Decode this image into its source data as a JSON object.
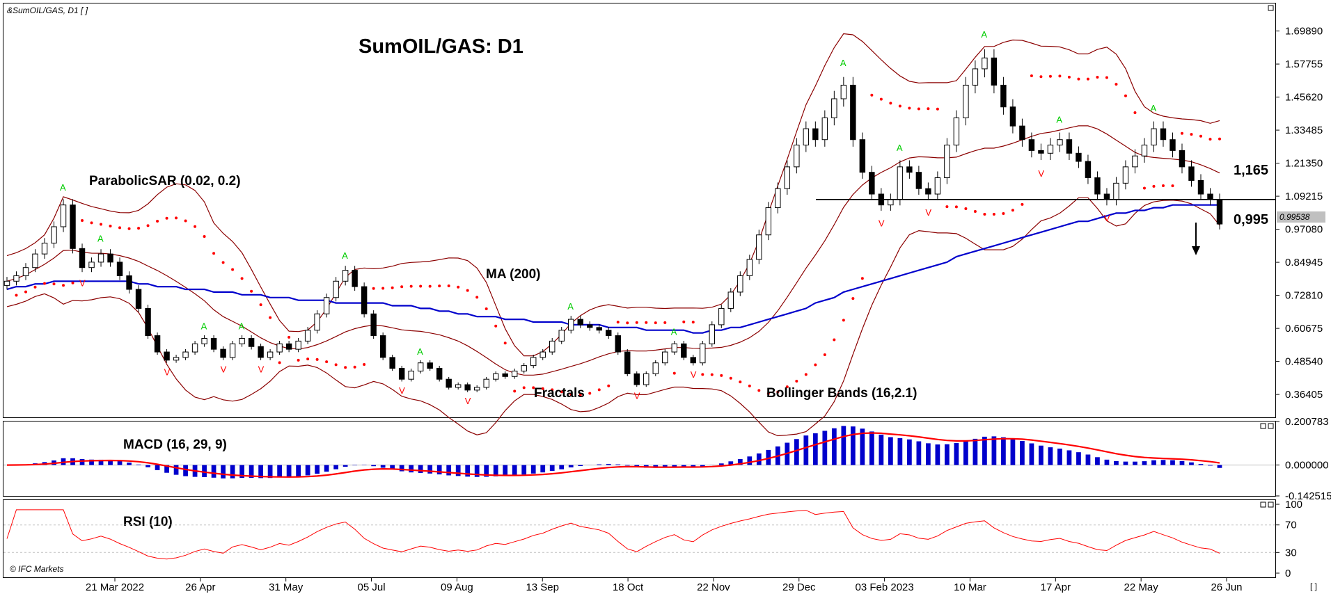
{
  "header": {
    "symbol_label": "&SumOIL/GAS, D1 [ ]",
    "chart_title": "SumOIL/GAS: D1",
    "watermark": "© IFC Markets",
    "corner_label": "[ ]"
  },
  "colors": {
    "bull_candle": "#ffffff",
    "bear_candle": "#000000",
    "ma": "#0000cc",
    "bollinger": "#8b0000",
    "sar": "#ff0000",
    "fractal_up": "#00cc00",
    "fractal_down": "#ff0000",
    "macd_hist": "#0000cc",
    "macd_signal": "#ff0000",
    "rsi": "#ff0000",
    "current_price_label": "#c0c0c0"
  },
  "annotations": {
    "parabolic_sar": "ParabolicSAR (0.02, 0.2)",
    "ma": "MA (200)",
    "fractals": "Fractals",
    "bollinger": "Bollinger Bands (16,2.1)",
    "macd": "MACD (16, 29, 9)",
    "rsi": "RSI (10)",
    "level_upper": "1,165",
    "level_lower": "0,995",
    "current_price": "0.99538"
  },
  "chart_data": [
    {
      "type": "candlestick",
      "title": "SumOIL/GAS: D1",
      "x_tick_labels": [
        "21 Mar 2022",
        "26 Apr",
        "31 May",
        "05 Jul",
        "09 Aug",
        "13 Sep",
        "18 Oct",
        "22 Nov",
        "29 Dec",
        "03 Feb 2023",
        "10 Mar",
        "17 Apr",
        "22 May",
        "26 Jun"
      ],
      "y_tick_labels": [
        "1.69890",
        "1.57755",
        "1.45620",
        "1.33485",
        "1.21350",
        "1.09215",
        "0.97080",
        "0.84945",
        "0.72810",
        "0.60675",
        "0.48540",
        "0.36405"
      ],
      "ylim": [
        0.28,
        1.8
      ],
      "grid": false,
      "horizontal_levels": [
        1.08
      ],
      "close": [
        0.78,
        0.8,
        0.83,
        0.88,
        0.92,
        0.98,
        1.06,
        0.9,
        0.83,
        0.85,
        0.88,
        0.85,
        0.8,
        0.75,
        0.68,
        0.58,
        0.52,
        0.49,
        0.5,
        0.52,
        0.55,
        0.57,
        0.53,
        0.5,
        0.55,
        0.57,
        0.54,
        0.5,
        0.52,
        0.55,
        0.53,
        0.56,
        0.6,
        0.66,
        0.72,
        0.78,
        0.82,
        0.76,
        0.66,
        0.58,
        0.5,
        0.46,
        0.42,
        0.45,
        0.48,
        0.46,
        0.42,
        0.39,
        0.4,
        0.38,
        0.39,
        0.42,
        0.44,
        0.43,
        0.45,
        0.47,
        0.5,
        0.52,
        0.56,
        0.6,
        0.64,
        0.62,
        0.61,
        0.6,
        0.58,
        0.52,
        0.44,
        0.4,
        0.44,
        0.48,
        0.52,
        0.55,
        0.5,
        0.48,
        0.55,
        0.62,
        0.68,
        0.74,
        0.8,
        0.86,
        0.95,
        1.05,
        1.12,
        1.2,
        1.28,
        1.34,
        1.3,
        1.38,
        1.45,
        1.5,
        1.3,
        1.18,
        1.1,
        1.06,
        1.08,
        1.2,
        1.18,
        1.12,
        1.1,
        1.16,
        1.28,
        1.38,
        1.5,
        1.56,
        1.6,
        1.5,
        1.42,
        1.35,
        1.3,
        1.26,
        1.25,
        1.28,
        1.3,
        1.25,
        1.22,
        1.16,
        1.1,
        1.08,
        1.14,
        1.2,
        1.24,
        1.28,
        1.34,
        1.3,
        1.26,
        1.2,
        1.15,
        1.1,
        1.08,
        0.99
      ],
      "ma_200": [
        0.75,
        0.76,
        0.76,
        0.77,
        0.77,
        0.78,
        0.78,
        0.78,
        0.78,
        0.78,
        0.78,
        0.78,
        0.78,
        0.78,
        0.77,
        0.77,
        0.76,
        0.76,
        0.76,
        0.75,
        0.75,
        0.75,
        0.74,
        0.74,
        0.74,
        0.73,
        0.73,
        0.73,
        0.72,
        0.72,
        0.72,
        0.71,
        0.71,
        0.71,
        0.71,
        0.7,
        0.7,
        0.7,
        0.7,
        0.7,
        0.7,
        0.69,
        0.69,
        0.69,
        0.68,
        0.68,
        0.67,
        0.67,
        0.66,
        0.66,
        0.65,
        0.65,
        0.65,
        0.64,
        0.64,
        0.64,
        0.63,
        0.63,
        0.63,
        0.63,
        0.62,
        0.62,
        0.62,
        0.62,
        0.61,
        0.61,
        0.61,
        0.61,
        0.6,
        0.6,
        0.6,
        0.6,
        0.6,
        0.59,
        0.59,
        0.6,
        0.6,
        0.61,
        0.61,
        0.62,
        0.63,
        0.64,
        0.65,
        0.66,
        0.67,
        0.68,
        0.7,
        0.71,
        0.72,
        0.74,
        0.75,
        0.76,
        0.77,
        0.78,
        0.79,
        0.8,
        0.81,
        0.82,
        0.83,
        0.84,
        0.85,
        0.87,
        0.88,
        0.89,
        0.9,
        0.91,
        0.92,
        0.93,
        0.94,
        0.95,
        0.96,
        0.97,
        0.98,
        0.99,
        1.0,
        1.0,
        1.01,
        1.02,
        1.03,
        1.03,
        1.04,
        1.04,
        1.05,
        1.05,
        1.06,
        1.06,
        1.06,
        1.06,
        1.06,
        1.06
      ],
      "rsi_levels": [
        30,
        70
      ],
      "macd_levels": [
        0.200783,
        0.0,
        -0.142515
      ]
    },
    {
      "type": "bar",
      "title": "MACD (16, 29, 9)",
      "y_tick_labels": [
        "0.200783",
        "0.000000",
        "-0.142515"
      ],
      "ylim": [
        -0.142515,
        0.200783
      ]
    },
    {
      "type": "line",
      "title": "RSI (10)",
      "y_tick_labels": [
        "100",
        "70",
        "30",
        "0"
      ],
      "ylim": [
        0,
        100
      ]
    }
  ]
}
